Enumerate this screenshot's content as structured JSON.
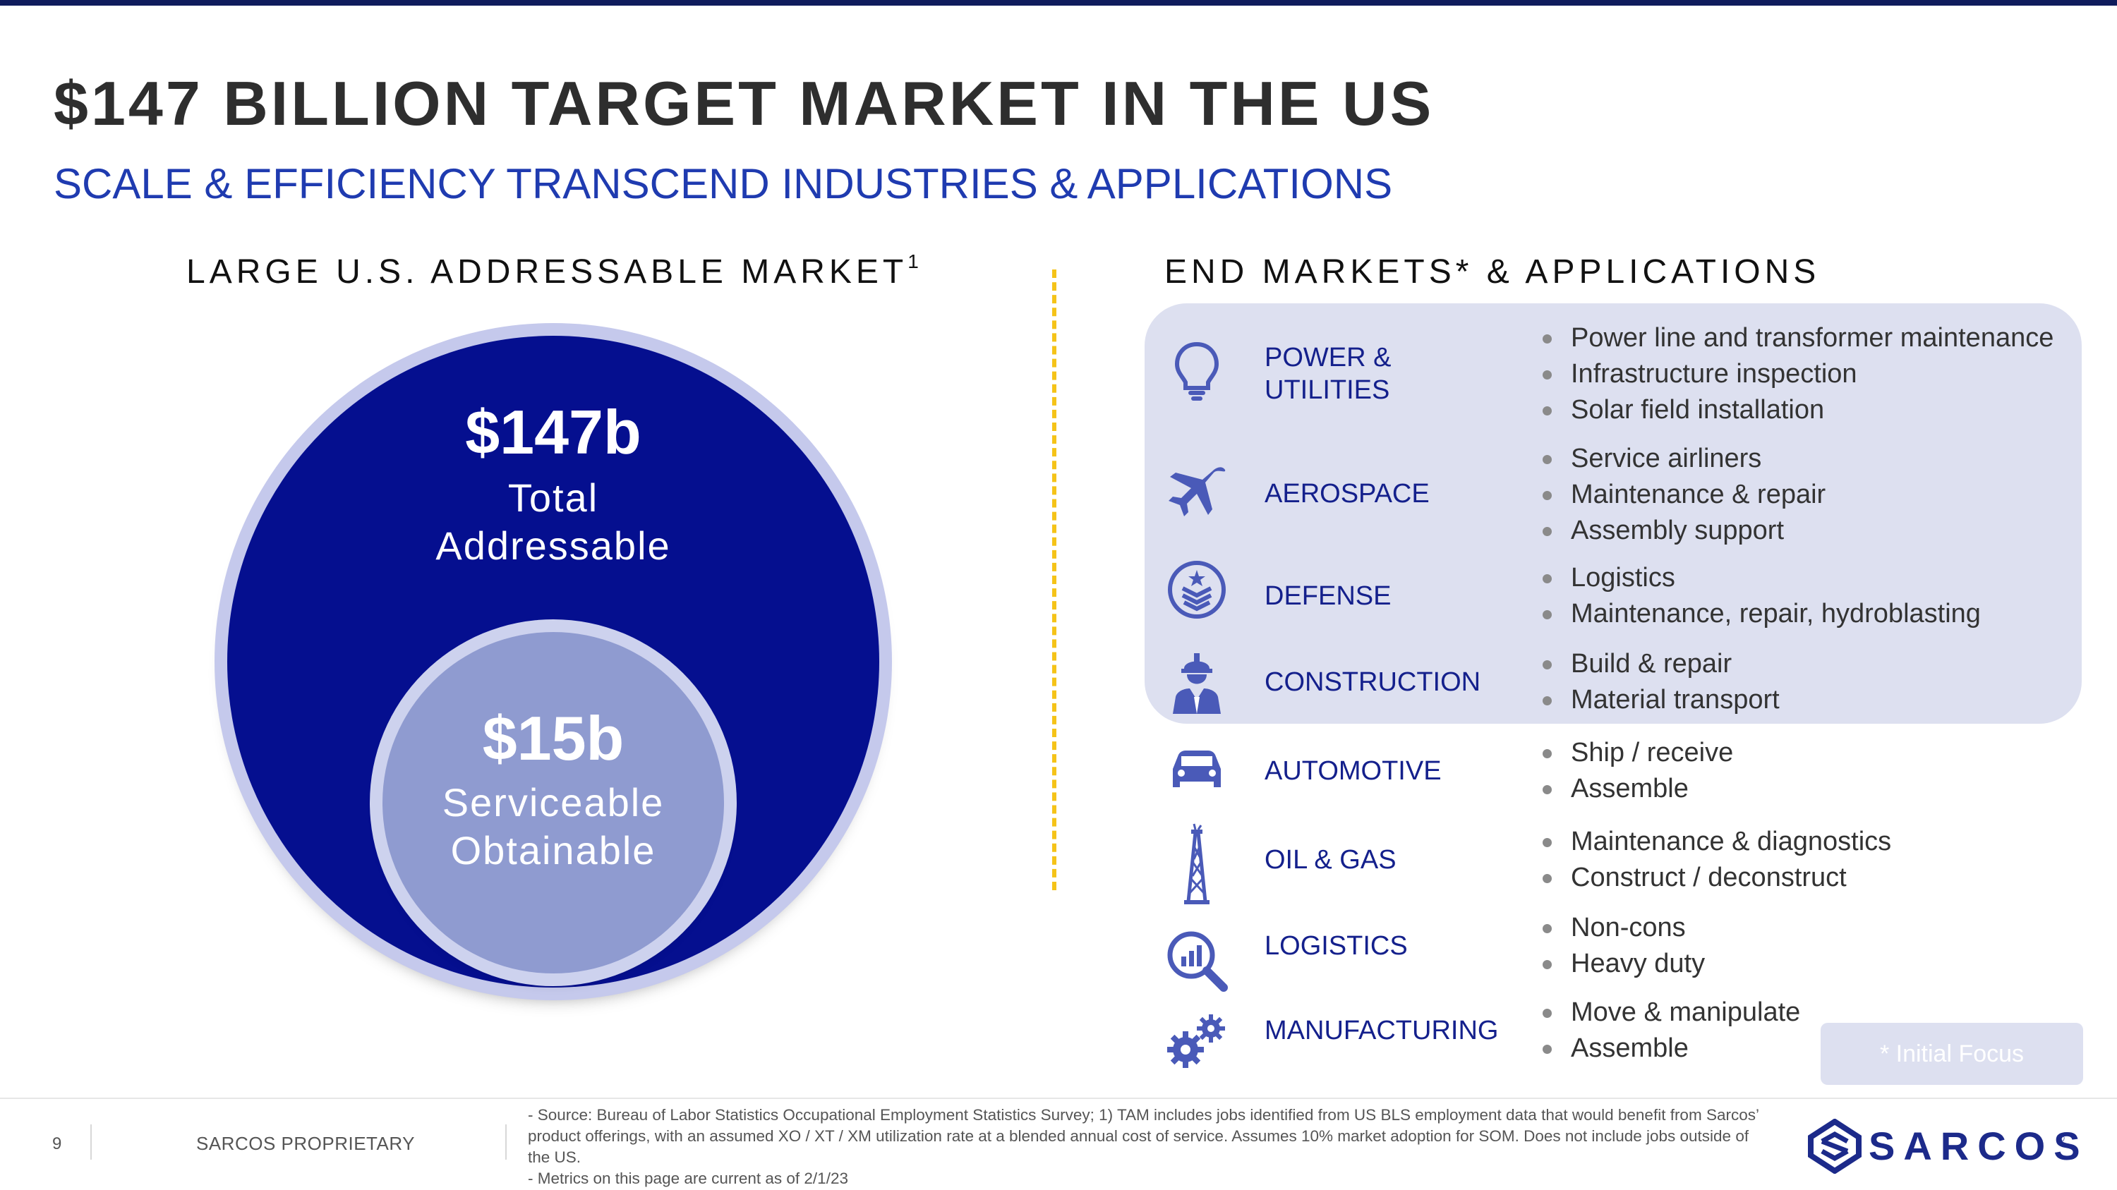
{
  "header": {
    "title": "$147 BILLION TARGET MARKET IN THE US",
    "subtitle": "SCALE & EFFICIENCY TRANSCEND INDUSTRIES & APPLICATIONS"
  },
  "addressable_market": {
    "heading": "LARGE U.S. ADDRESSABLE MARKET",
    "footnote_marker": "1",
    "tam_value": "$147b",
    "tam_label_line1": "Total",
    "tam_label_line2": "Addressable",
    "som_value": "$15b",
    "som_label_line1": "Serviceable",
    "som_label_line2": "Obtainable"
  },
  "end_markets": {
    "heading": "END MARKETS* & APPLICATIONS",
    "items": [
      {
        "icon": "lightbulb-icon",
        "label_line1": "POWER &",
        "label_line2": "UTILITIES",
        "apps": [
          "Power line and transformer maintenance",
          "Infrastructure inspection",
          "Solar field installation"
        ]
      },
      {
        "icon": "airplane-icon",
        "label_line1": "AEROSPACE",
        "label_line2": "",
        "apps": [
          "Service airliners",
          "Maintenance & repair",
          "Assembly support"
        ]
      },
      {
        "icon": "military-badge-icon",
        "label_line1": "DEFENSE",
        "label_line2": "",
        "apps": [
          "Logistics",
          "Maintenance, repair, hydroblasting"
        ]
      },
      {
        "icon": "construction-worker-icon",
        "label_line1": "CONSTRUCTION",
        "label_line2": "",
        "apps": [
          "Build & repair",
          "Material transport"
        ]
      },
      {
        "icon": "car-icon",
        "label_line1": "AUTOMOTIVE",
        "label_line2": "",
        "apps": [
          "Ship / receive",
          "Assemble"
        ]
      },
      {
        "icon": "oil-derrick-icon",
        "label_line1": "OIL & GAS",
        "label_line2": "",
        "apps": [
          "Maintenance & diagnostics",
          "Construct / deconstruct"
        ]
      },
      {
        "icon": "magnifier-chart-icon",
        "label_line1": "LOGISTICS",
        "label_line2": "",
        "apps": [
          "Non-cons",
          "Heavy duty"
        ]
      },
      {
        "icon": "gears-icon",
        "label_line1": "MANUFACTURING",
        "label_line2": "",
        "apps": [
          "Move & manipulate",
          "Assemble"
        ]
      }
    ],
    "initial_focus_note": "* Initial Focus",
    "focus_color": "#dde0f0"
  },
  "footer": {
    "page_number": "9",
    "proprietary": "SARCOS PROPRIETARY",
    "footnote_line1": "- Source: Bureau of Labor Statistics Occupational Employment Statistics Survey; 1) TAM includes jobs identified from US BLS employment data that would benefit from Sarcos’ product offerings, with an assumed XO / XT / XM utilization rate at a blended annual cost of service. Assumes 10% market adoption for SOM. Does not include jobs outside of the US.",
    "footnote_line2": "- Metrics on this page are current as of 2/1/23",
    "logo_text": "SARCOS",
    "logo_mark": "®"
  },
  "colors": {
    "title": "#2e2e2e",
    "accent_blue": "#1f3bb0",
    "circle_navy": "#050f8f",
    "circle_light": "#8f9bd0",
    "divider_gold": "#f5c318",
    "icon_blue": "#4a5ab8"
  }
}
